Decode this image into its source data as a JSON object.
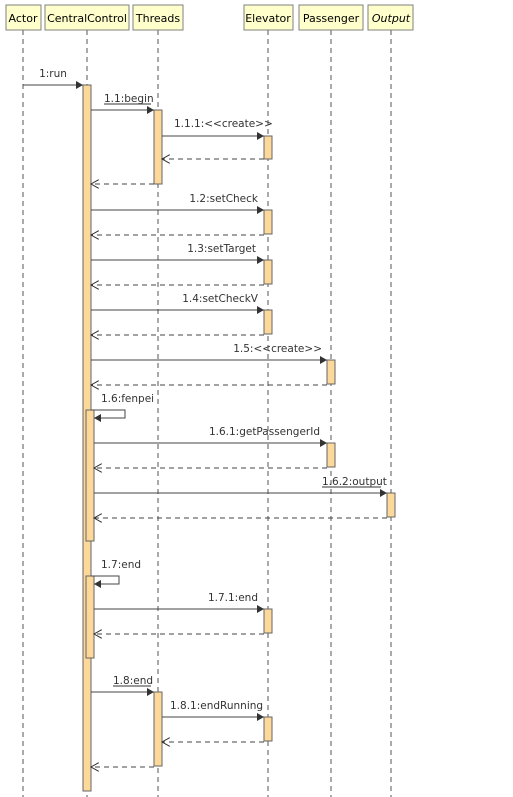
{
  "participants": [
    {
      "id": "actor",
      "label": "Actor",
      "italic": false
    },
    {
      "id": "cc",
      "label": "CentralControl",
      "italic": false
    },
    {
      "id": "threads",
      "label": "Threads",
      "italic": false
    },
    {
      "id": "elevator",
      "label": "Elevator",
      "italic": false
    },
    {
      "id": "passenger",
      "label": "Passenger",
      "italic": false
    },
    {
      "id": "output",
      "label": "Output",
      "italic": true
    }
  ],
  "messages": [
    {
      "label": "1:run",
      "from": "actor",
      "to": "cc",
      "underlined": false
    },
    {
      "label": "1.1:begin",
      "from": "cc",
      "to": "threads",
      "underlined": true
    },
    {
      "label": "1.1.1:<<create>>",
      "from": "threads",
      "to": "elevator",
      "underlined": false
    },
    {
      "label": "1.2:setCheck",
      "from": "cc",
      "to": "elevator",
      "underlined": false
    },
    {
      "label": "1.3:setTarget",
      "from": "cc",
      "to": "elevator",
      "underlined": false
    },
    {
      "label": "1.4:setCheckV",
      "from": "cc",
      "to": "elevator",
      "underlined": false
    },
    {
      "label": "1.5:<<create>>",
      "from": "cc",
      "to": "passenger",
      "underlined": false
    },
    {
      "label": "1.6:fenpei",
      "from": "cc",
      "to": "cc",
      "underlined": false
    },
    {
      "label": "1.6.1:getPassengerId",
      "from": "cc",
      "to": "passenger",
      "underlined": false
    },
    {
      "label": "1.6.2:output",
      "from": "cc",
      "to": "output",
      "underlined": true
    },
    {
      "label": "1.7:end",
      "from": "cc",
      "to": "cc",
      "underlined": false
    },
    {
      "label": "1.7.1:end",
      "from": "cc",
      "to": "elevator",
      "underlined": false
    },
    {
      "label": "1.8:end",
      "from": "cc",
      "to": "threads",
      "underlined": true
    },
    {
      "label": "1.8.1:endRunning",
      "from": "threads",
      "to": "elevator",
      "underlined": false
    }
  ]
}
